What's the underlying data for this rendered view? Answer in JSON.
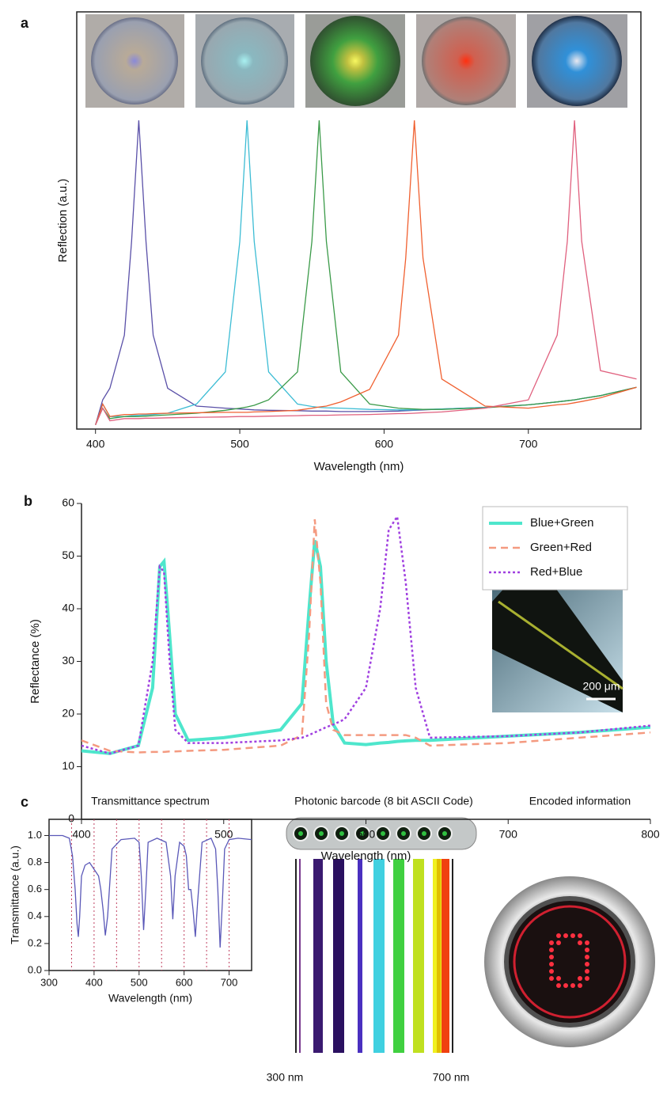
{
  "panel_labels": [
    "a",
    "b",
    "c"
  ],
  "illustrations": {
    "barcode": {
      "title": "Photonic barcode (8 bit ASCII Code)",
      "start_label": "300 nm",
      "end_label": "700 nm"
    },
    "encoded": {
      "title": "Encoded information"
    }
  },
  "chart_data": [
    {
      "type": "line",
      "x_label": "Wavelength (nm)",
      "y_label": "Reflection (a.u.)",
      "x": [
        400,
        405,
        410,
        420,
        425,
        430,
        435,
        440,
        450,
        470,
        490,
        500,
        505,
        510,
        520,
        540,
        550,
        555,
        560,
        570,
        590,
        610,
        615,
        621,
        627,
        640,
        670,
        700,
        720,
        727,
        732,
        737,
        750,
        775
      ],
      "xlim": [
        387,
        778
      ],
      "xticks": [
        400,
        500,
        600,
        700
      ],
      "ylim": [
        0,
        100
      ],
      "series": [
        {
          "color": "#5a50a8",
          "style": "solid",
          "values": [
            1,
            7,
            9.8,
            22.5,
            45,
            74,
            45,
            22.5,
            9.8,
            5.5,
            5,
            4.8,
            4.7,
            4.6,
            4.5,
            4.4,
            4.3,
            4.3,
            4.3,
            4.2,
            4.2,
            4.3,
            4.4,
            4.5,
            4.6,
            4.8,
            5.2,
            5.8,
            6.5,
            6.8,
            7,
            7.3,
            8,
            10
          ]
        },
        {
          "color": "#3cbcd4",
          "style": "solid",
          "values": [
            1,
            6,
            3,
            3,
            3.2,
            3.3,
            3.4,
            3.5,
            3.8,
            6,
            13.7,
            45,
            74,
            45,
            13.7,
            6,
            5.4,
            5.2,
            5.1,
            5,
            4.7,
            4.6,
            4.6,
            4.6,
            4.7,
            4.8,
            5.2,
            5.8,
            6.5,
            6.8,
            7,
            7.3,
            8,
            10
          ]
        },
        {
          "color": "#3a9a48",
          "style": "solid",
          "values": [
            1,
            5,
            2.5,
            3,
            3,
            3,
            3.1,
            3.2,
            3.4,
            3.8,
            4.5,
            5,
            5.3,
            5.7,
            7,
            13.7,
            45,
            74,
            45,
            13.7,
            6,
            5,
            4.9,
            4.8,
            4.7,
            4.7,
            5.1,
            5.8,
            6.5,
            6.8,
            7,
            7.3,
            8,
            10
          ]
        },
        {
          "color": "#f06030",
          "style": "solid",
          "values": [
            1,
            6,
            3,
            3.5,
            3.5,
            3.6,
            3.6,
            3.7,
            3.8,
            3.9,
            4,
            4,
            4,
            4.1,
            4.2,
            4.5,
            5,
            5.3,
            5.5,
            6.5,
            9.5,
            22.5,
            41,
            74,
            41,
            12,
            5.5,
            5,
            5.8,
            6,
            6.3,
            6.6,
            7.5,
            10
          ]
        },
        {
          "color": "#e0607e",
          "style": "solid",
          "values": [
            1,
            5,
            2,
            2.5,
            2.5,
            2.5,
            2.6,
            2.6,
            2.7,
            2.8,
            2.9,
            3,
            3,
            3,
            3.1,
            3.2,
            3.3,
            3.3,
            3.3,
            3.4,
            3.5,
            3.7,
            3.7,
            3.8,
            3.9,
            4.1,
            5,
            7,
            22.5,
            45,
            74,
            45,
            14,
            12
          ]
        }
      ]
    },
    {
      "type": "line",
      "x_label": "Wavelength (nm)",
      "y_label": "Reflectance (%)",
      "annotation": "200 μm",
      "x": [
        400,
        420,
        440,
        450,
        455,
        458,
        462,
        466,
        475,
        500,
        540,
        555,
        560,
        564,
        568,
        572,
        577,
        585,
        600,
        610,
        616,
        622,
        628,
        635,
        645,
        700,
        750,
        800
      ],
      "xlim": [
        400,
        800
      ],
      "xticks": [
        400,
        500,
        600,
        700,
        800
      ],
      "ylim": [
        0,
        60
      ],
      "yticks": [
        0,
        10,
        20,
        30,
        40,
        50,
        60
      ],
      "legend": "upper right",
      "series": [
        {
          "name": "Blue+Green",
          "color": "#4ee6cc",
          "style": "solid",
          "values": [
            13,
            12.5,
            14,
            25,
            48,
            49,
            35,
            20,
            15,
            15.5,
            17,
            22,
            40,
            53,
            48,
            30,
            18,
            14.5,
            14.2,
            14.5,
            14.6,
            14.8,
            14.9,
            15,
            15,
            15.8,
            16.5,
            17.5
          ]
        },
        {
          "name": "Green+Red",
          "color": "#f49a80",
          "style": "dashed",
          "values": [
            15,
            13,
            12.7,
            12.8,
            12.8,
            12.8,
            12.9,
            12.9,
            13,
            13.2,
            14,
            16,
            35,
            57,
            45,
            22,
            17,
            16,
            16,
            16,
            16,
            16,
            16,
            15.5,
            14,
            14.5,
            15.5,
            16.5
          ]
        },
        {
          "name": "Red+Blue",
          "color": "#a040e0",
          "style": "dotted",
          "values": [
            14,
            12.5,
            14,
            30,
            48,
            47,
            30,
            17,
            14.5,
            14.5,
            15,
            15.5,
            16,
            16.5,
            17,
            17.5,
            18,
            19,
            25,
            40,
            55,
            57.5,
            45,
            25,
            15.5,
            15.8,
            16.5,
            17.8
          ]
        }
      ]
    },
    {
      "type": "line",
      "title": "Transmittance spectrum",
      "x_label": "Wavelength (nm)",
      "y_label": "Transmittance (a.u.)",
      "x": [
        300,
        330,
        345,
        352,
        358,
        362,
        365,
        368,
        372,
        380,
        390,
        400,
        410,
        415,
        420,
        425,
        430,
        440,
        460,
        490,
        500,
        505,
        510,
        515,
        520,
        540,
        560,
        570,
        575,
        580,
        590,
        600,
        605,
        610,
        615,
        620,
        625,
        630,
        640,
        660,
        670,
        675,
        680,
        685,
        690,
        700,
        720,
        750
      ],
      "xlim": [
        300,
        750
      ],
      "xticks": [
        300,
        400,
        500,
        600,
        700
      ],
      "ylim": [
        0,
        1.12
      ],
      "yticks": [
        {
          "value": 0,
          "label": "0.0"
        },
        0.2,
        0.4,
        0.6,
        0.8,
        {
          "value": 1,
          "label": "1.0"
        }
      ],
      "vlines": [
        350,
        400,
        450,
        500,
        550,
        600,
        650,
        700
      ],
      "series": [
        {
          "color": "#5a58b8",
          "style": "solid",
          "values": [
            1,
            1,
            0.98,
            0.85,
            0.6,
            0.35,
            0.25,
            0.4,
            0.7,
            0.78,
            0.8,
            0.75,
            0.7,
            0.6,
            0.45,
            0.26,
            0.4,
            0.9,
            0.97,
            0.98,
            0.95,
            0.7,
            0.3,
            0.6,
            0.95,
            0.98,
            0.95,
            0.7,
            0.38,
            0.7,
            0.95,
            0.92,
            0.85,
            0.6,
            0.6,
            0.45,
            0.25,
            0.5,
            0.95,
            0.98,
            0.9,
            0.6,
            0.17,
            0.5,
            0.9,
            0.97,
            0.98,
            0.97
          ]
        }
      ]
    }
  ]
}
